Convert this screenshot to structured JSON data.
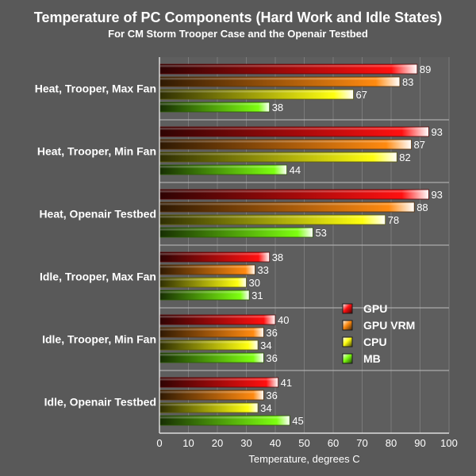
{
  "chart_data": {
    "type": "bar",
    "orientation": "horizontal",
    "title": "Temperature of PC Components (Hard Work and Idle States)",
    "subtitle": "For CM Storm Trooper Case and the Openair Testbed",
    "xlabel": "Temperature, degrees C",
    "ylabel": "",
    "xlim": [
      0,
      100
    ],
    "x_ticks": [
      0,
      10,
      20,
      30,
      40,
      50,
      60,
      70,
      80,
      90,
      100
    ],
    "grid": true,
    "legend_position": "right",
    "categories": [
      "Heat, Trooper, Max Fan",
      "Heat, Trooper, Min Fan",
      "Heat, Openair Testbed",
      "Idle, Trooper, Max Fan",
      "Idle, Trooper, Min Fan",
      "Idle, Openair Testbed"
    ],
    "series": [
      {
        "name": "GPU",
        "color": "#ff1010",
        "values": [
          89,
          93,
          93,
          38,
          40,
          41
        ]
      },
      {
        "name": "GPU VRM",
        "color": "#ff8a10",
        "values": [
          83,
          87,
          88,
          33,
          36,
          36
        ]
      },
      {
        "name": "CPU",
        "color": "#ffff10",
        "values": [
          67,
          82,
          78,
          30,
          34,
          34
        ]
      },
      {
        "name": "MB",
        "color": "#7dff10",
        "values": [
          38,
          44,
          53,
          31,
          36,
          45
        ]
      }
    ]
  }
}
